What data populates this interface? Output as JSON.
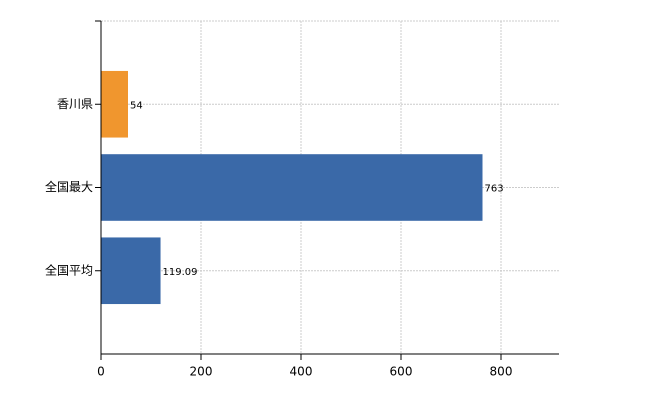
{
  "chart_data": {
    "type": "hbar",
    "categories": [
      "香川県",
      "全国最大",
      "全国平均"
    ],
    "values": [
      54,
      763,
      119.09
    ],
    "colors": [
      "#f0962e",
      "#3a69a8",
      "#3a69a8"
    ],
    "xlim": [
      0,
      916
    ],
    "xticks": [
      0,
      200,
      400,
      600,
      800
    ],
    "grid": true
  }
}
